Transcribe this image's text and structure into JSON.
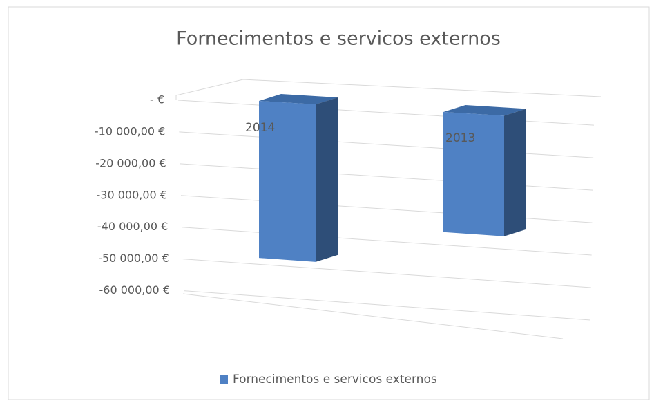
{
  "chart_data": {
    "type": "bar3d",
    "title": "Fornecimentos e servicos externos",
    "categories": [
      "2014",
      "2013"
    ],
    "series": [
      {
        "name": "Fornecimentos e servicos externos",
        "color": "#4f81c4",
        "values": [
          -48000,
          -36000
        ]
      }
    ],
    "ylim": [
      -60000,
      0
    ],
    "yticks": [
      {
        "value": 0,
        "label": "-  €"
      },
      {
        "value": -10000,
        "label": "-10 000,00 €"
      },
      {
        "value": -20000,
        "label": "-20 000,00 €"
      },
      {
        "value": -30000,
        "label": "-30 000,00 €"
      },
      {
        "value": -40000,
        "label": "-40 000,00 €"
      },
      {
        "value": -50000,
        "label": "-50 000,00 €"
      },
      {
        "value": -60000,
        "label": "-60 000,00 €"
      }
    ],
    "grid": true,
    "legend": "bottom"
  }
}
